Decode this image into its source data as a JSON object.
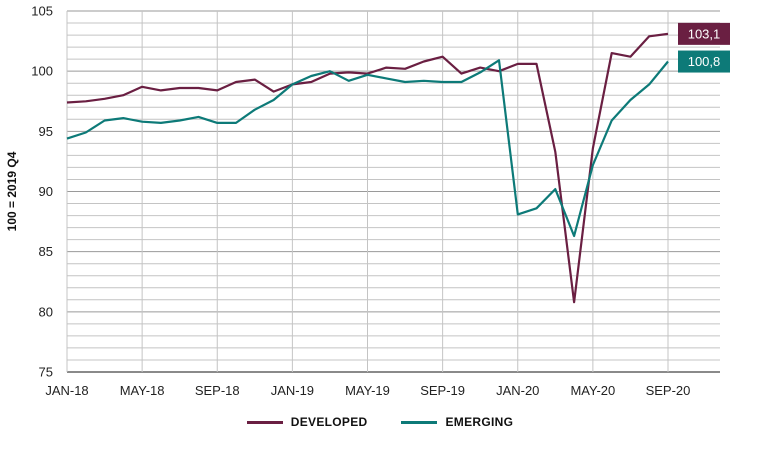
{
  "chart_data": {
    "type": "line",
    "ylabel": "100 = 2019 Q4",
    "ylim": [
      75,
      105
    ],
    "yticks": [
      75,
      80,
      85,
      90,
      95,
      100,
      105
    ],
    "grid": true,
    "x": [
      "JAN-18",
      "FEB-18",
      "MAR-18",
      "APR-18",
      "MAY-18",
      "JUN-18",
      "JUL-18",
      "AUG-18",
      "SEP-18",
      "OCT-18",
      "NOV-18",
      "DEC-18",
      "JAN-19",
      "FEB-19",
      "MAR-19",
      "APR-19",
      "MAY-19",
      "JUN-19",
      "JUL-19",
      "AUG-19",
      "SEP-19",
      "OCT-19",
      "NOV-19",
      "DEC-19",
      "JAN-20",
      "FEB-20",
      "MAR-20",
      "APR-20",
      "MAY-20",
      "JUN-20",
      "JUL-20",
      "AUG-20",
      "SEP-20"
    ],
    "xticks": [
      "JAN-18",
      "MAY-18",
      "SEP-18",
      "JAN-19",
      "MAY-19",
      "SEP-19",
      "JAN-20",
      "MAY-20",
      "SEP-20"
    ],
    "series": [
      {
        "name": "DEVELOPED",
        "color": "#6a1f42",
        "values": [
          97.4,
          97.5,
          97.7,
          98.0,
          98.7,
          98.4,
          98.6,
          98.6,
          98.4,
          99.1,
          99.3,
          98.3,
          98.9,
          99.1,
          99.8,
          99.9,
          99.8,
          100.3,
          100.2,
          100.8,
          101.2,
          99.8,
          100.3,
          100.0,
          100.6,
          100.6,
          93.3,
          80.8,
          93.6,
          101.5,
          101.2,
          102.9,
          103.1
        ],
        "end_label": "103,1"
      },
      {
        "name": "EMERGING",
        "color": "#0d7a78",
        "values": [
          94.4,
          94.9,
          95.9,
          96.1,
          95.8,
          95.7,
          95.9,
          96.2,
          95.7,
          95.7,
          96.8,
          97.6,
          98.9,
          99.6,
          100.0,
          99.2,
          99.7,
          99.4,
          99.1,
          99.2,
          99.1,
          99.1,
          99.9,
          100.9,
          88.1,
          88.6,
          90.2,
          86.3,
          92.2,
          95.9,
          97.6,
          98.9,
          100.8
        ],
        "end_label": "100,8"
      }
    ],
    "legend": "bottom-center"
  }
}
